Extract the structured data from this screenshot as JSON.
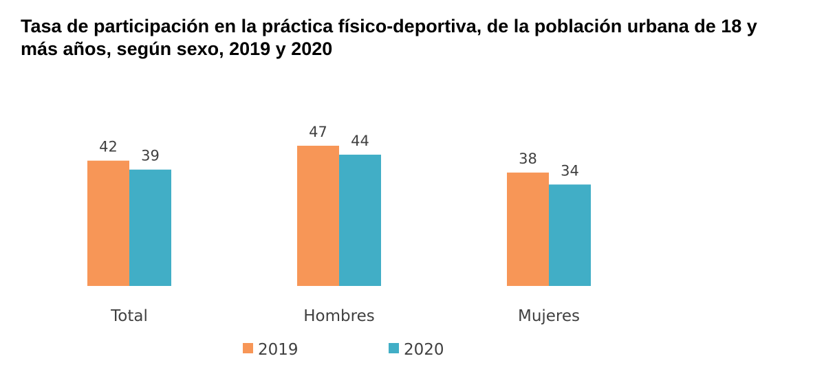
{
  "chart_data": {
    "type": "bar",
    "title": "Tasa de participación en la práctica físico-deportiva, de la población urbana de 18 y más años, según sexo, 2019 y 2020",
    "categories": [
      "Total",
      "Hombres",
      "Mujeres"
    ],
    "series": [
      {
        "name": "2019",
        "values": [
          42,
          47,
          38
        ],
        "color": "#F79657"
      },
      {
        "name": "2020",
        "values": [
          39,
          44,
          34
        ],
        "color": "#41AEC6"
      }
    ],
    "ylim": [
      0,
      47
    ],
    "grid": false,
    "legend_position": "bottom"
  }
}
